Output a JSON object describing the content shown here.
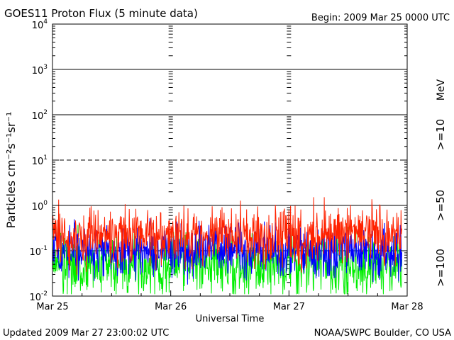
{
  "chart_data": {
    "type": "line",
    "title": "GOES11 Proton Flux (5 minute data)",
    "begin_label": "Begin: 2009 Mar 25 0000 UTC",
    "xlabel": "Universal Time",
    "ylabel": "Particles cm⁻²s⁻¹sr⁻¹",
    "units_label": "MeV",
    "updated_label": "Updated 2009 Mar 27 23:00:02 UTC",
    "source_label": "NOAA/SWPC Boulder, CO USA",
    "x_ticks": [
      "Mar 25",
      "Mar 26",
      "Mar 27",
      "Mar 28"
    ],
    "x_range_days": [
      0,
      3
    ],
    "y_scale": "log",
    "ylim": [
      0.01,
      10000
    ],
    "y_ticks": [
      {
        "value": 10000,
        "base": "10",
        "exp": "4"
      },
      {
        "value": 1000,
        "base": "10",
        "exp": "3"
      },
      {
        "value": 100,
        "base": "10",
        "exp": "2"
      },
      {
        "value": 10,
        "base": "10",
        "exp": "1"
      },
      {
        "value": 1,
        "base": "10",
        "exp": "0"
      },
      {
        "value": 0.1,
        "base": "10",
        "exp": "-1"
      },
      {
        "value": 0.01,
        "base": "10",
        "exp": "-2"
      }
    ],
    "threshold_lines": [
      {
        "value": 1000,
        "style": "solid"
      },
      {
        "value": 100,
        "style": "solid"
      },
      {
        "value": 10,
        "style": "dashed"
      },
      {
        "value": 1,
        "style": "solid"
      },
      {
        "value": 0.1,
        "style": "solid"
      }
    ],
    "series": [
      {
        "name": ">=10",
        "color": "#ff2200",
        "baseline": 0.23,
        "spread": 0.32,
        "seed": 11
      },
      {
        "name": ">=50",
        "color": "#0000ff",
        "baseline": 0.098,
        "spread": 0.28,
        "seed": 23
      },
      {
        "name": ">=100",
        "color": "#00ee00",
        "baseline": 0.05,
        "spread": 0.34,
        "seed": 37
      }
    ]
  }
}
